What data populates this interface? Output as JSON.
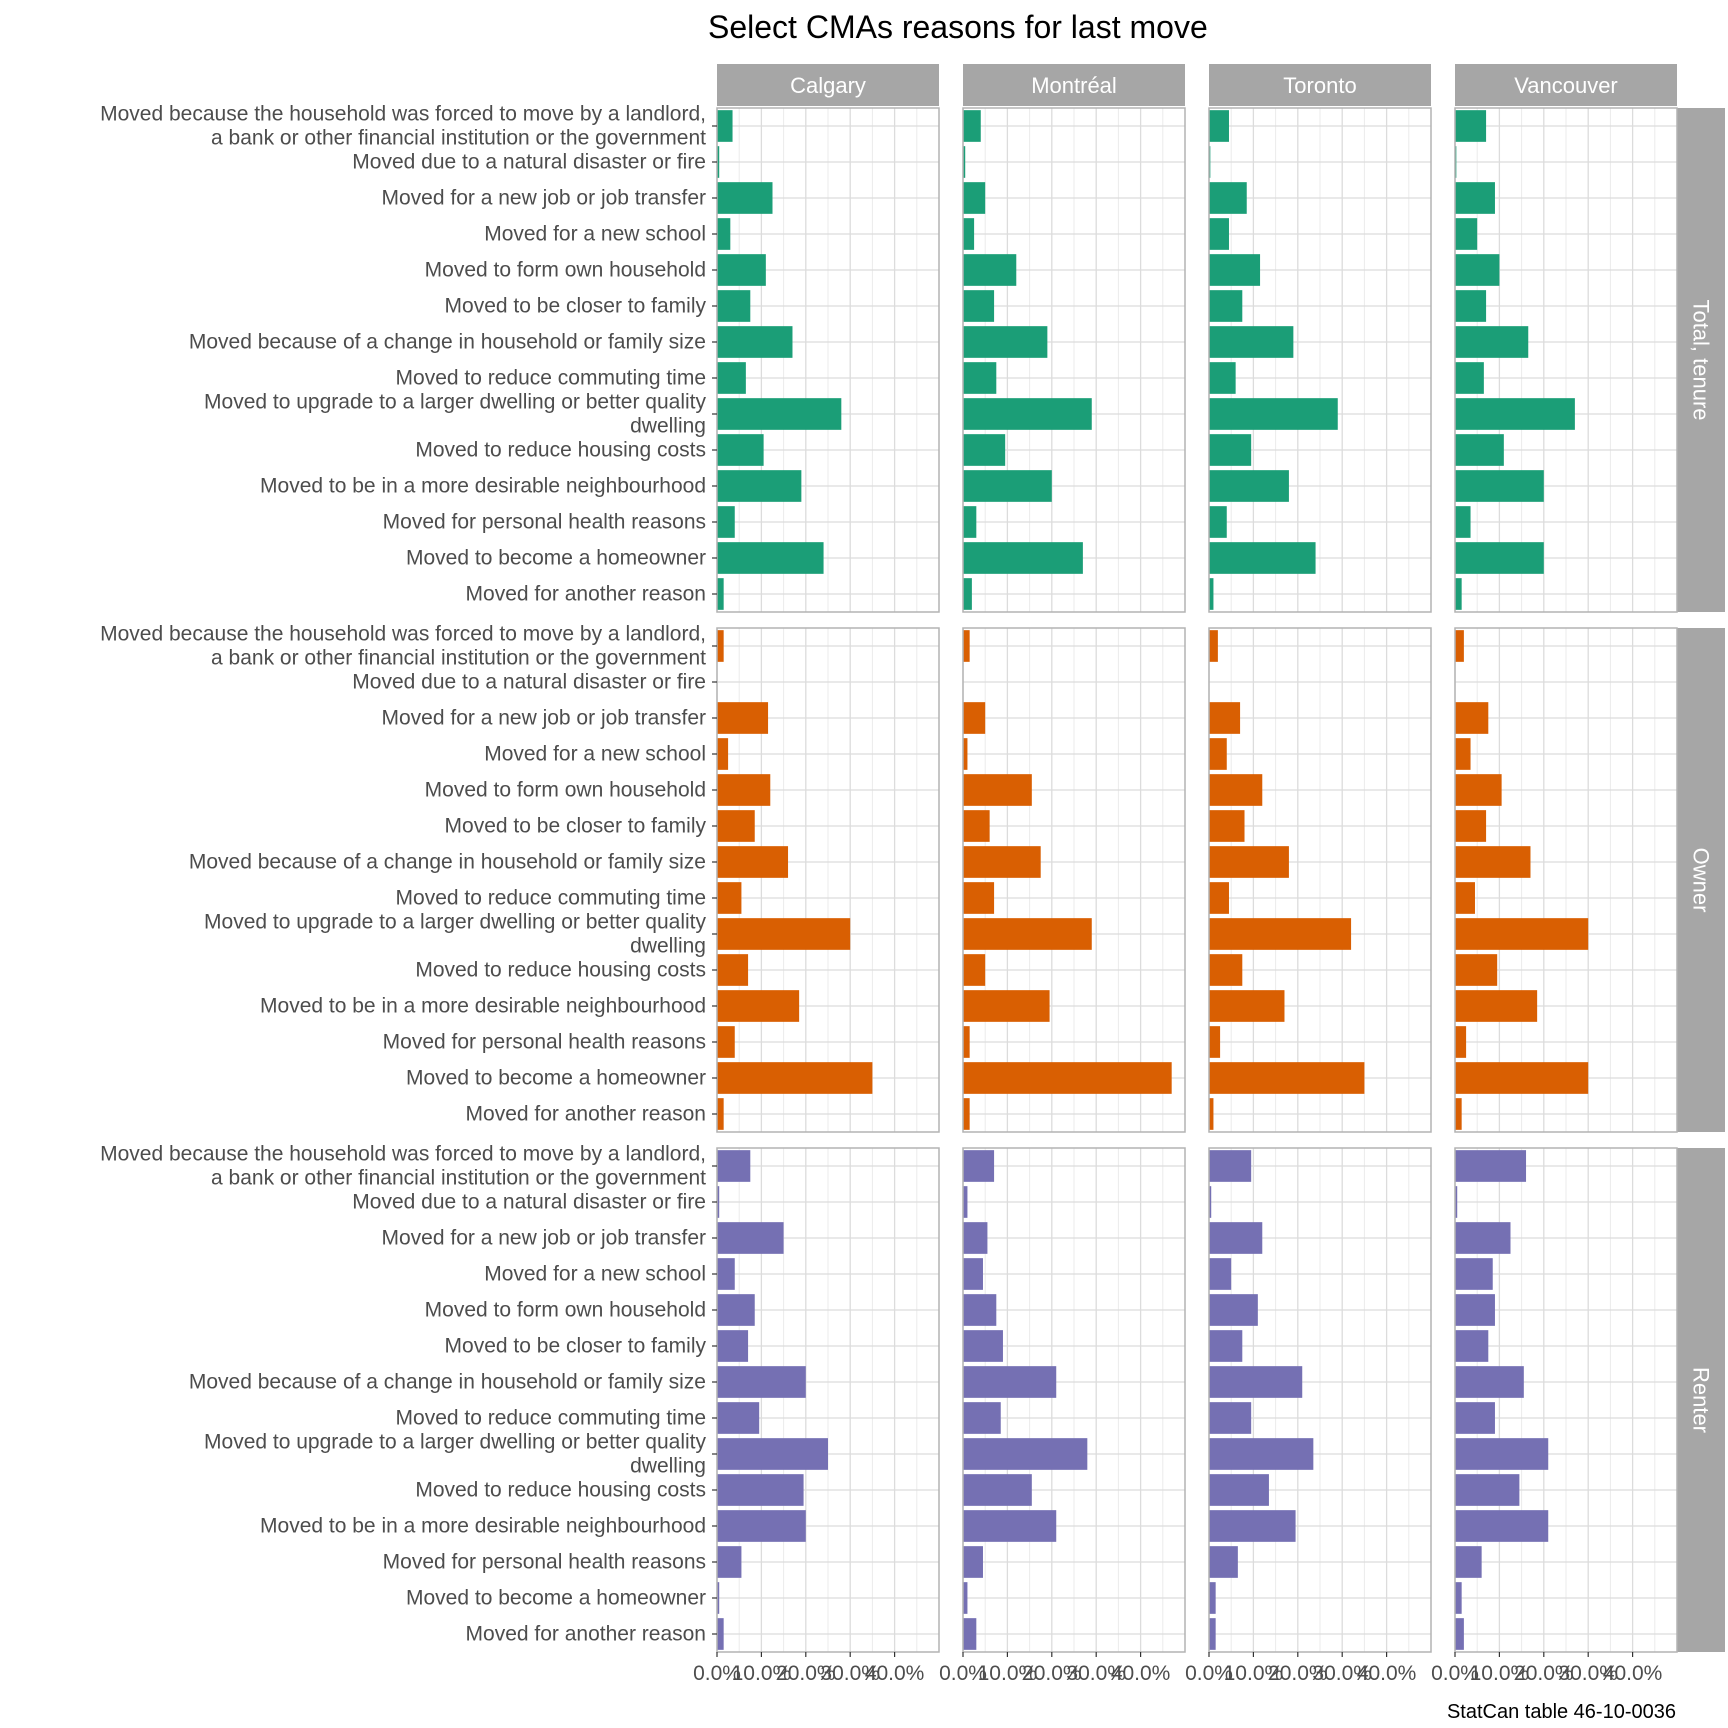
{
  "chart_data": {
    "type": "bar",
    "orientation": "horizontal",
    "title": "Select CMAs reasons for last move",
    "caption": "StatCan table 46-10-0036",
    "xlabel": "",
    "ylabel": "",
    "xlim": [
      0,
      50
    ],
    "x_ticks": [
      0,
      10,
      20,
      30,
      40
    ],
    "x_tick_labels": [
      "0.0%",
      "10.0%",
      "20.0%",
      "30.0%",
      "40.0%"
    ],
    "columns": [
      "Calgary",
      "Montréal",
      "Toronto",
      "Vancouver"
    ],
    "rows": [
      "Total, tenure",
      "Owner",
      "Renter"
    ],
    "row_colors": {
      "Total, tenure": "#1b9e77",
      "Owner": "#d95f02",
      "Renter": "#7570b3"
    },
    "categories": [
      [
        "Moved because the household was forced to move by a landlord,",
        "a bank or other financial institution or the government"
      ],
      [
        "Moved due to a natural disaster or fire"
      ],
      [
        "Moved for a new job or job transfer"
      ],
      [
        "Moved for a new school"
      ],
      [
        "Moved to form own household"
      ],
      [
        "Moved to be closer to family"
      ],
      [
        "Moved because of a change in household or family size"
      ],
      [
        "Moved to reduce commuting time"
      ],
      [
        "Moved to upgrade to a larger dwelling or better quality",
        "dwelling"
      ],
      [
        "Moved to reduce housing costs"
      ],
      [
        "Moved to be in a more desirable neighbourhood"
      ],
      [
        "Moved for personal health reasons"
      ],
      [
        "Moved to become a homeowner"
      ],
      [
        "Moved for another reason"
      ]
    ],
    "series": [
      {
        "row": "Total, tenure",
        "column": "Calgary",
        "values": [
          3.5,
          0.5,
          12.5,
          3.0,
          11.0,
          7.5,
          17.0,
          6.5,
          28.0,
          10.5,
          19.0,
          4.0,
          24.0,
          1.5
        ]
      },
      {
        "row": "Total, tenure",
        "column": "Montréal",
        "values": [
          4.0,
          0.5,
          5.0,
          2.5,
          12.0,
          7.0,
          19.0,
          7.5,
          29.0,
          9.5,
          20.0,
          3.0,
          27.0,
          2.0
        ]
      },
      {
        "row": "Total, tenure",
        "column": "Toronto",
        "values": [
          4.5,
          0.3,
          8.5,
          4.5,
          11.5,
          7.5,
          19.0,
          6.0,
          29.0,
          9.5,
          18.0,
          4.0,
          24.0,
          1.0
        ]
      },
      {
        "row": "Total, tenure",
        "column": "Vancouver",
        "values": [
          7.0,
          0.3,
          9.0,
          5.0,
          10.0,
          7.0,
          16.5,
          6.5,
          27.0,
          11.0,
          20.0,
          3.5,
          20.0,
          1.5
        ]
      },
      {
        "row": "Owner",
        "column": "Calgary",
        "values": [
          1.5,
          0.0,
          11.5,
          2.5,
          12.0,
          8.5,
          16.0,
          5.5,
          30.0,
          7.0,
          18.5,
          4.0,
          35.0,
          1.5
        ]
      },
      {
        "row": "Owner",
        "column": "Montréal",
        "values": [
          1.5,
          0.0,
          5.0,
          1.0,
          15.5,
          6.0,
          17.5,
          7.0,
          29.0,
          5.0,
          19.5,
          1.5,
          47.0,
          1.5
        ]
      },
      {
        "row": "Owner",
        "column": "Toronto",
        "values": [
          2.0,
          0.0,
          7.0,
          4.0,
          12.0,
          8.0,
          18.0,
          4.5,
          32.0,
          7.5,
          17.0,
          2.5,
          35.0,
          1.0
        ]
      },
      {
        "row": "Owner",
        "column": "Vancouver",
        "values": [
          2.0,
          0.0,
          7.5,
          3.5,
          10.5,
          7.0,
          17.0,
          4.5,
          30.0,
          9.5,
          18.5,
          2.5,
          30.0,
          1.5
        ]
      },
      {
        "row": "Renter",
        "column": "Calgary",
        "values": [
          7.5,
          0.5,
          15.0,
          4.0,
          8.5,
          7.0,
          20.0,
          9.5,
          25.0,
          19.5,
          20.0,
          5.5,
          0.5,
          1.5
        ]
      },
      {
        "row": "Renter",
        "column": "Montréal",
        "values": [
          7.0,
          1.0,
          5.5,
          4.5,
          7.5,
          9.0,
          21.0,
          8.5,
          28.0,
          15.5,
          21.0,
          4.5,
          1.0,
          3.0
        ]
      },
      {
        "row": "Renter",
        "column": "Toronto",
        "values": [
          9.5,
          0.5,
          12.0,
          5.0,
          11.0,
          7.5,
          21.0,
          9.5,
          23.5,
          13.5,
          19.5,
          6.5,
          1.5,
          1.5
        ]
      },
      {
        "row": "Renter",
        "column": "Vancouver",
        "values": [
          16.0,
          0.5,
          12.5,
          8.5,
          9.0,
          7.5,
          15.5,
          9.0,
          21.0,
          14.5,
          21.0,
          6.0,
          1.5,
          2.0
        ]
      }
    ]
  }
}
